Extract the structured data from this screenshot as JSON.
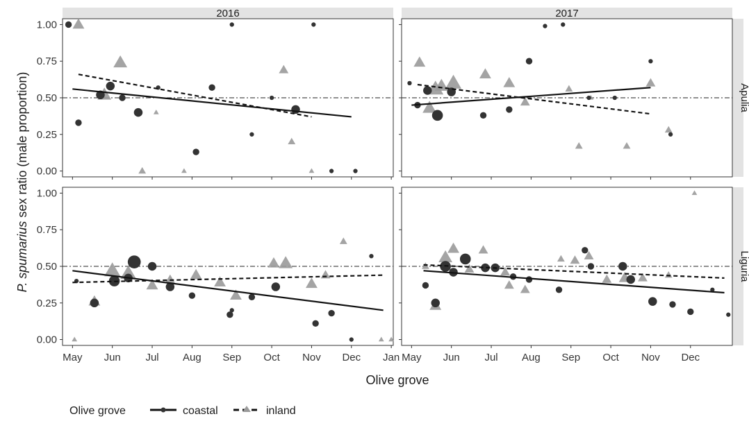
{
  "chart_data": {
    "type": "scatter",
    "facets": {
      "columns": [
        "2016",
        "2017"
      ],
      "rows": [
        "Apulia",
        "Liguria"
      ]
    },
    "xlabel": "Olive grove",
    "ylabel_italic": "P. spumarius",
    "ylabel_rest": " sex ratio (male proportion)",
    "y_ticks": [
      "0.00",
      "0.25",
      "0.50",
      "0.75",
      "1.00"
    ],
    "y_tick_values": [
      0,
      0.25,
      0.5,
      0.75,
      1.0
    ],
    "ylim": [
      -0.04,
      1.04
    ],
    "x_ticks": {
      "2016": [
        "May",
        "Jun",
        "Jul",
        "Aug",
        "Sep",
        "Oct",
        "Nov",
        "Dec",
        "Jan"
      ],
      "2017": [
        "May",
        "Jun",
        "Jul",
        "Aug",
        "Sep",
        "Oct",
        "Nov",
        "Dec"
      ]
    },
    "x_tick_months": {
      "2016": [
        0,
        1,
        2,
        3,
        4,
        5,
        6,
        7,
        8
      ],
      "2017": [
        0,
        1,
        2,
        3,
        4,
        5,
        6,
        7
      ]
    },
    "x_domain_months": [
      -0.25,
      8.05
    ],
    "x_unit_note": "x values are months after 1 May of the panel year",
    "reference_line": 0.5,
    "legend": {
      "title": "Olive grove",
      "entries": [
        {
          "label": "coastal",
          "shape": "circle",
          "line": "solid",
          "color": "#333333"
        },
        {
          "label": "inland",
          "shape": "triangle",
          "line": "dashed",
          "color": "#9a9a9a"
        }
      ],
      "position": "bottom"
    },
    "colors": {
      "coastal": "#333333",
      "inland": "#9a9a9a"
    },
    "panels": [
      {
        "column": "2016",
        "row": "Apulia",
        "coastal_points": [
          [
            -0.1,
            1.0,
            2
          ],
          [
            0.15,
            0.33,
            2
          ],
          [
            0.7,
            0.52,
            3
          ],
          [
            0.95,
            0.58,
            3
          ],
          [
            1.25,
            0.5,
            2
          ],
          [
            1.65,
            0.4,
            3
          ],
          [
            2.15,
            0.57,
            1
          ],
          [
            3.1,
            0.13,
            2
          ],
          [
            3.5,
            0.57,
            2
          ],
          [
            4.0,
            1.0,
            1
          ],
          [
            4.5,
            0.25,
            1
          ],
          [
            5.0,
            0.5,
            1
          ],
          [
            5.6,
            0.42,
            3
          ],
          [
            6.05,
            1.0,
            1
          ],
          [
            6.5,
            0.0,
            1
          ],
          [
            7.1,
            0.0,
            1
          ]
        ],
        "inland_points": [
          [
            0.15,
            1.0,
            4
          ],
          [
            0.8,
            0.52,
            5
          ],
          [
            1.2,
            0.74,
            5
          ],
          [
            1.75,
            0.0,
            2
          ],
          [
            2.1,
            0.4,
            1
          ],
          [
            2.8,
            0.0,
            1
          ],
          [
            5.3,
            0.69,
            3
          ],
          [
            5.5,
            0.2,
            2
          ],
          [
            6.0,
            0.0,
            1
          ]
        ],
        "coastal_trend": [
          [
            0.0,
            0.56
          ],
          [
            7.0,
            0.37
          ]
        ],
        "inland_trend": [
          [
            0.15,
            0.66
          ],
          [
            6.0,
            0.37
          ]
        ]
      },
      {
        "column": "2017",
        "row": "Apulia",
        "coastal_points": [
          [
            -0.05,
            0.6,
            1
          ],
          [
            0.15,
            0.45,
            2
          ],
          [
            0.4,
            0.55,
            3
          ],
          [
            0.65,
            0.38,
            4
          ],
          [
            1.0,
            0.54,
            3
          ],
          [
            1.8,
            0.38,
            2
          ],
          [
            2.45,
            0.42,
            2
          ],
          [
            2.95,
            0.75,
            2
          ],
          [
            3.35,
            0.99,
            1
          ],
          [
            3.8,
            1.0,
            1
          ],
          [
            4.45,
            0.5,
            1
          ],
          [
            5.1,
            0.5,
            1
          ],
          [
            6.0,
            0.75,
            1
          ],
          [
            6.5,
            0.25,
            1
          ]
        ],
        "inland_points": [
          [
            0.2,
            0.74,
            4
          ],
          [
            0.45,
            0.43,
            5
          ],
          [
            0.6,
            0.56,
            6
          ],
          [
            0.75,
            0.58,
            5
          ],
          [
            1.05,
            0.6,
            6
          ],
          [
            1.85,
            0.66,
            4
          ],
          [
            2.45,
            0.6,
            4
          ],
          [
            2.85,
            0.47,
            3
          ],
          [
            3.95,
            0.56,
            2
          ],
          [
            4.2,
            0.17,
            2
          ],
          [
            4.5,
            0.5,
            1
          ],
          [
            5.4,
            0.17,
            2
          ],
          [
            6.0,
            0.6,
            3
          ],
          [
            6.45,
            0.28,
            2
          ]
        ],
        "coastal_trend": [
          [
            0.0,
            0.45
          ],
          [
            6.0,
            0.57
          ]
        ],
        "inland_trend": [
          [
            0.15,
            0.59
          ],
          [
            6.0,
            0.39
          ]
        ]
      },
      {
        "column": "2016",
        "row": "Liguria",
        "coastal_points": [
          [
            0.1,
            0.4,
            1
          ],
          [
            0.55,
            0.25,
            3
          ],
          [
            1.05,
            0.4,
            4
          ],
          [
            1.4,
            0.42,
            3
          ],
          [
            1.55,
            0.53,
            5
          ],
          [
            2.0,
            0.5,
            3
          ],
          [
            2.45,
            0.36,
            3
          ],
          [
            3.0,
            0.3,
            2
          ],
          [
            3.95,
            0.17,
            2
          ],
          [
            4.0,
            0.2,
            1
          ],
          [
            4.5,
            0.29,
            2
          ],
          [
            5.1,
            0.36,
            3
          ],
          [
            6.1,
            0.11,
            2
          ],
          [
            6.5,
            0.18,
            2
          ],
          [
            7.0,
            0.0,
            1
          ],
          [
            7.5,
            0.57,
            1
          ]
        ],
        "inland_points": [
          [
            0.05,
            0.0,
            1
          ],
          [
            0.55,
            0.26,
            4
          ],
          [
            1.0,
            0.47,
            6
          ],
          [
            1.4,
            0.45,
            6
          ],
          [
            2.0,
            0.37,
            4
          ],
          [
            2.45,
            0.41,
            3
          ],
          [
            3.1,
            0.44,
            4
          ],
          [
            3.7,
            0.39,
            4
          ],
          [
            4.1,
            0.3,
            4
          ],
          [
            5.05,
            0.52,
            4
          ],
          [
            5.35,
            0.52,
            5
          ],
          [
            6.0,
            0.38,
            4
          ],
          [
            6.35,
            0.44,
            3
          ],
          [
            6.8,
            0.67,
            2
          ],
          [
            7.75,
            0.0,
            1
          ],
          [
            8.0,
            0.0,
            1
          ]
        ],
        "coastal_trend": [
          [
            0.0,
            0.47
          ],
          [
            7.8,
            0.2
          ]
        ],
        "inland_trend": [
          [
            0.0,
            0.39
          ],
          [
            7.8,
            0.44
          ]
        ]
      },
      {
        "column": "2017",
        "row": "Liguria",
        "coastal_points": [
          [
            0.35,
            0.37,
            2
          ],
          [
            0.6,
            0.25,
            3
          ],
          [
            0.85,
            0.5,
            4
          ],
          [
            1.05,
            0.46,
            3
          ],
          [
            1.35,
            0.55,
            4
          ],
          [
            1.85,
            0.49,
            3
          ],
          [
            2.1,
            0.49,
            3
          ],
          [
            2.55,
            0.43,
            2
          ],
          [
            2.95,
            0.41,
            2
          ],
          [
            3.7,
            0.34,
            2
          ],
          [
            4.35,
            0.61,
            2
          ],
          [
            4.5,
            0.5,
            2
          ],
          [
            5.3,
            0.5,
            3
          ],
          [
            5.5,
            0.41,
            3
          ],
          [
            6.05,
            0.26,
            3
          ],
          [
            6.55,
            0.24,
            2
          ],
          [
            7.0,
            0.19,
            2
          ],
          [
            7.55,
            0.34,
            1
          ],
          [
            7.95,
            0.17,
            1
          ]
        ],
        "inland_points": [
          [
            0.35,
            0.5,
            2
          ],
          [
            0.6,
            0.23,
            4
          ],
          [
            0.85,
            0.56,
            5
          ],
          [
            1.05,
            0.62,
            4
          ],
          [
            1.45,
            0.48,
            3
          ],
          [
            1.8,
            0.61,
            3
          ],
          [
            2.35,
            0.46,
            3
          ],
          [
            2.45,
            0.37,
            3
          ],
          [
            2.85,
            0.34,
            3
          ],
          [
            3.75,
            0.55,
            2
          ],
          [
            4.1,
            0.54,
            3
          ],
          [
            4.45,
            0.57,
            3
          ],
          [
            4.9,
            0.41,
            3
          ],
          [
            5.35,
            0.42,
            4
          ],
          [
            5.8,
            0.42,
            3
          ],
          [
            6.45,
            0.44,
            2
          ],
          [
            7.1,
            1.0,
            1
          ]
        ],
        "coastal_trend": [
          [
            0.3,
            0.47
          ],
          [
            7.85,
            0.32
          ]
        ],
        "inland_trend": [
          [
            0.3,
            0.51
          ],
          [
            7.85,
            0.42
          ]
        ]
      }
    ]
  }
}
